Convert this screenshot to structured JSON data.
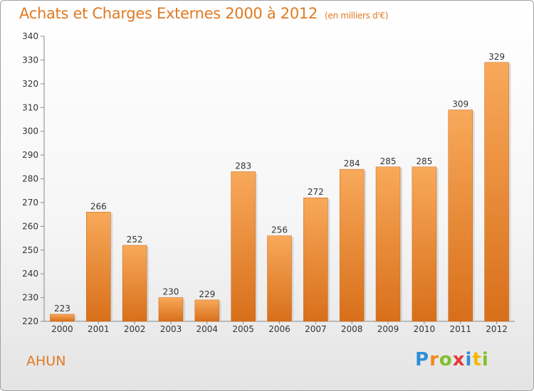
{
  "title": "Achats et Charges Externes 2000 à 2012",
  "title_unit": "(en milliers d'€)",
  "commune": "AHUN",
  "logo": {
    "text": "Proxiti",
    "letters": [
      {
        "ch": "P",
        "color": "#2d8fd4"
      },
      {
        "ch": "r",
        "color": "#f08a1c"
      },
      {
        "ch": "o",
        "color": "#7fbf2a"
      },
      {
        "ch": "x",
        "color": "#e23a3a"
      },
      {
        "ch": "i",
        "color": "#2d8fd4"
      },
      {
        "ch": "t",
        "color": "#f5b800"
      },
      {
        "ch": "i",
        "color": "#7fbf2a"
      }
    ]
  },
  "colors": {
    "accent": "#e07a22",
    "bar_top": "#f8a95a",
    "bar_bottom": "#d86f1a",
    "axis": "#888888",
    "text": "#333333"
  },
  "chart_data": {
    "type": "bar",
    "title": "Achats et Charges Externes 2000 à 2012",
    "categories": [
      "2000",
      "2001",
      "2002",
      "2003",
      "2004",
      "2005",
      "2006",
      "2007",
      "2008",
      "2009",
      "2010",
      "2011",
      "2012"
    ],
    "values": [
      223,
      266,
      252,
      230,
      229,
      283,
      256,
      272,
      284,
      285,
      285,
      309,
      329
    ],
    "xlabel": "",
    "ylabel": "",
    "ylim": [
      220,
      340
    ],
    "yticks": [
      220,
      230,
      240,
      250,
      260,
      270,
      280,
      290,
      300,
      310,
      320,
      330,
      340
    ],
    "grid": false,
    "legend": "none"
  }
}
